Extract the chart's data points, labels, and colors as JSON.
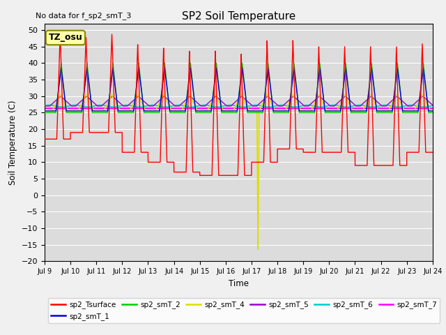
{
  "title": "SP2 Soil Temperature",
  "subtitle": "No data for f_sp2_smT_3",
  "ylabel": "Soil Temperature (C)",
  "xlabel": "Time",
  "ylim": [
    -20,
    52
  ],
  "yticks": [
    -20,
    -15,
    -10,
    -5,
    0,
    5,
    10,
    15,
    20,
    25,
    30,
    35,
    40,
    45,
    50
  ],
  "xtick_labels": [
    "Jul 9",
    "Jul 10",
    "Jul 11",
    "Jul 12",
    "Jul 13",
    "Jul 14",
    "Jul 15",
    "Jul 16",
    "Jul 17",
    "Jul 18",
    "Jul 19",
    "Jul 20",
    "Jul 21",
    "Jul 22",
    "Jul 23",
    "Jul 24"
  ],
  "tz_label": "TZ_osu",
  "legend_entries": [
    {
      "label": "sp2_Tsurface",
      "color": "#ff0000"
    },
    {
      "label": "sp2_smT_1",
      "color": "#0000dd"
    },
    {
      "label": "sp2_smT_2",
      "color": "#00cc00"
    },
    {
      "label": "sp2_smT_4",
      "color": "#dddd00"
    },
    {
      "label": "sp2_smT_5",
      "color": "#9900cc"
    },
    {
      "label": "sp2_smT_6",
      "color": "#00cccc"
    },
    {
      "label": "sp2_smT_7",
      "color": "#ff00ff"
    }
  ],
  "bg_color": "#dcdcdc",
  "grid_color": "#ffffff",
  "fig_facecolor": "#f0f0f0"
}
